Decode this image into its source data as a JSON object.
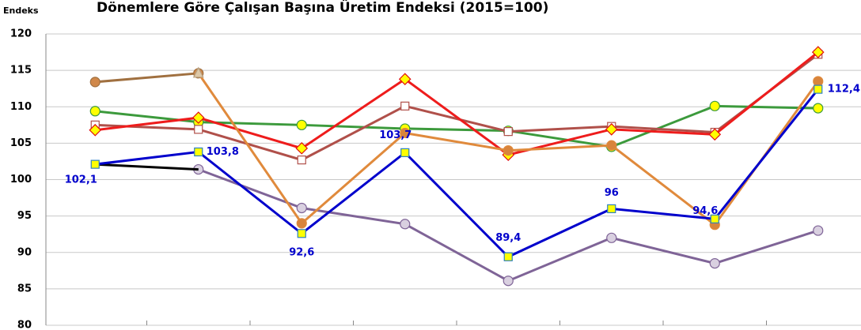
{
  "chart_data": {
    "type": "line",
    "title": "Dönemlere Göre Çalışan Başına Üretim Endeksi (2015=100)",
    "y_label": "Endeks",
    "categories": [
      null,
      null,
      null,
      null,
      null,
      null,
      null,
      null
    ],
    "ylim": [
      80,
      120
    ],
    "yticks": [
      80,
      85,
      90,
      95,
      100,
      105,
      110,
      115,
      120
    ],
    "grid": true,
    "series": [
      {
        "color": "#7f6497",
        "marker": "circle",
        "marker_fill": "#d9d0e0",
        "values": [
          null,
          101.4,
          96.1,
          93.9,
          86.1,
          92.0,
          88.5,
          93.0
        ]
      },
      {
        "color": "#000000",
        "marker": "none",
        "values": [
          102.1,
          101.4,
          null,
          null,
          null,
          null,
          null,
          null
        ]
      },
      {
        "color": "#3c9a3c",
        "marker": "circle",
        "marker_fill": "#ffff00",
        "values": [
          109.4,
          107.9,
          107.5,
          107.0,
          106.7,
          104.5,
          110.1,
          109.8
        ]
      },
      {
        "color": "#b0504a",
        "marker": "square",
        "marker_fill": "#ffffff",
        "values": [
          107.5,
          106.9,
          102.7,
          110.1,
          106.6,
          107.3,
          106.5,
          117.2
        ]
      },
      {
        "color": "#ee1c1c",
        "marker": "diamond",
        "marker_fill": "#ffff00",
        "values": [
          106.8,
          108.5,
          104.3,
          113.8,
          103.4,
          106.9,
          106.2,
          117.5
        ]
      },
      {
        "color": "#a07040",
        "marker": "circle",
        "marker_fill": "#d0884a",
        "values": [
          113.4,
          114.6,
          null,
          null,
          null,
          null,
          null,
          null
        ]
      },
      {
        "color": "#e08a3c",
        "marker": "circle",
        "marker_fill": "#d8843c",
        "values": [
          null,
          114.6,
          94.0,
          106.4,
          104.0,
          104.7,
          93.8,
          113.5
        ]
      },
      {
        "color": "#0000cc",
        "marker": "square",
        "marker_fill": "#ffff00",
        "values": [
          102.1,
          103.8,
          92.6,
          103.7,
          89.4,
          96,
          94.6,
          112.4
        ],
        "value_labels": [
          "102,1",
          "103,8",
          "92,6",
          "103,7",
          "89,4",
          "96",
          "94,6",
          "112,4"
        ]
      }
    ]
  }
}
